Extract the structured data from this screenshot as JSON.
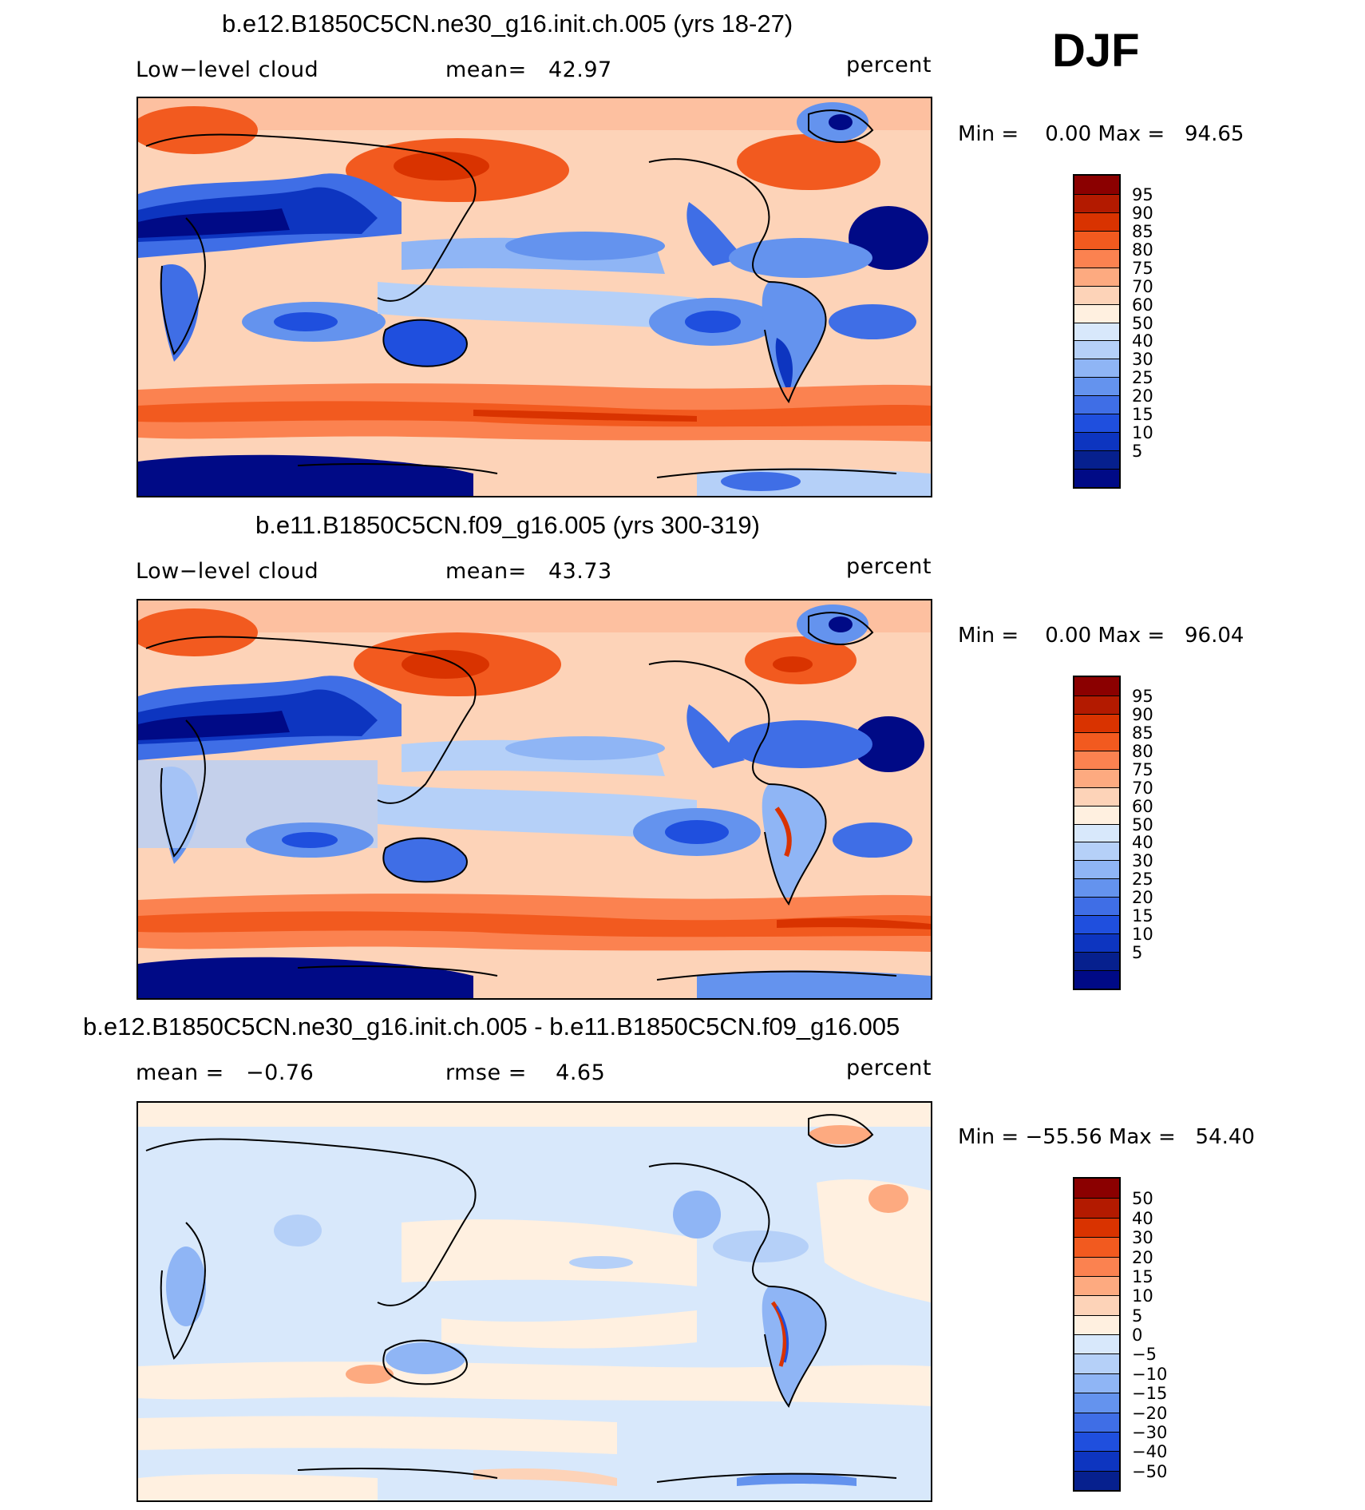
{
  "season": "DJF",
  "units": "percent",
  "panels": [
    {
      "title": "b.e12.B1850C5CN.ne30_g16.init.ch.005 (yrs 18-27)",
      "left_label": "Low−level cloud",
      "center_label": "mean=   42.97",
      "right_label": "percent",
      "minmax": "Min =    0.00 Max =   94.65",
      "colorbar": {
        "colors": [
          "#8b0000",
          "#b31a00",
          "#d93300",
          "#f25a1f",
          "#fb8250",
          "#fdaa80",
          "#fdd3b8",
          "#fff0e0",
          "#d8e8fb",
          "#b5d0f8",
          "#8fb5f5",
          "#6493ee",
          "#3f6ee6",
          "#1f4fde",
          "#0d35c0",
          "#06208e",
          "#000a86"
        ],
        "labels": [
          "95",
          "90",
          "85",
          "80",
          "75",
          "70",
          "60",
          "50",
          "40",
          "30",
          "25",
          "20",
          "15",
          "10",
          "5"
        ]
      }
    },
    {
      "title": "b.e11.B1850C5CN.f09_g16.005 (yrs 300-319)",
      "left_label": "Low−level cloud",
      "center_label": "mean=   43.73",
      "right_label": "percent",
      "minmax": "Min =    0.00 Max =   96.04",
      "colorbar": {
        "colors": [
          "#8b0000",
          "#b31a00",
          "#d93300",
          "#f25a1f",
          "#fb8250",
          "#fdaa80",
          "#fdd3b8",
          "#fff0e0",
          "#d8e8fb",
          "#b5d0f8",
          "#8fb5f5",
          "#6493ee",
          "#3f6ee6",
          "#1f4fde",
          "#0d35c0",
          "#06208e",
          "#000a86"
        ],
        "labels": [
          "95",
          "90",
          "85",
          "80",
          "75",
          "70",
          "60",
          "50",
          "40",
          "30",
          "25",
          "20",
          "15",
          "10",
          "5"
        ]
      }
    },
    {
      "title": "b.e12.B1850C5CN.ne30_g16.init.ch.005 - b.e11.B1850C5CN.f09_g16.005",
      "left_label": "mean =   −0.76",
      "center_label": "rmse =    4.65",
      "right_label": "percent",
      "minmax": "Min = −55.56 Max =   54.40",
      "colorbar": {
        "colors": [
          "#8b0000",
          "#b31a00",
          "#d93300",
          "#f25a1f",
          "#fb8250",
          "#fdaa80",
          "#fdd3b8",
          "#fff0e0",
          "#d8e8fb",
          "#b5d0f8",
          "#8fb5f5",
          "#6493ee",
          "#3f6ee6",
          "#1f4fde",
          "#0d35c0",
          "#06208e"
        ],
        "labels": [
          "50",
          "40",
          "30",
          "20",
          "15",
          "10",
          "5",
          "0",
          "−5",
          "−10",
          "−15",
          "−20",
          "−30",
          "−40",
          "−50"
        ]
      }
    }
  ]
}
